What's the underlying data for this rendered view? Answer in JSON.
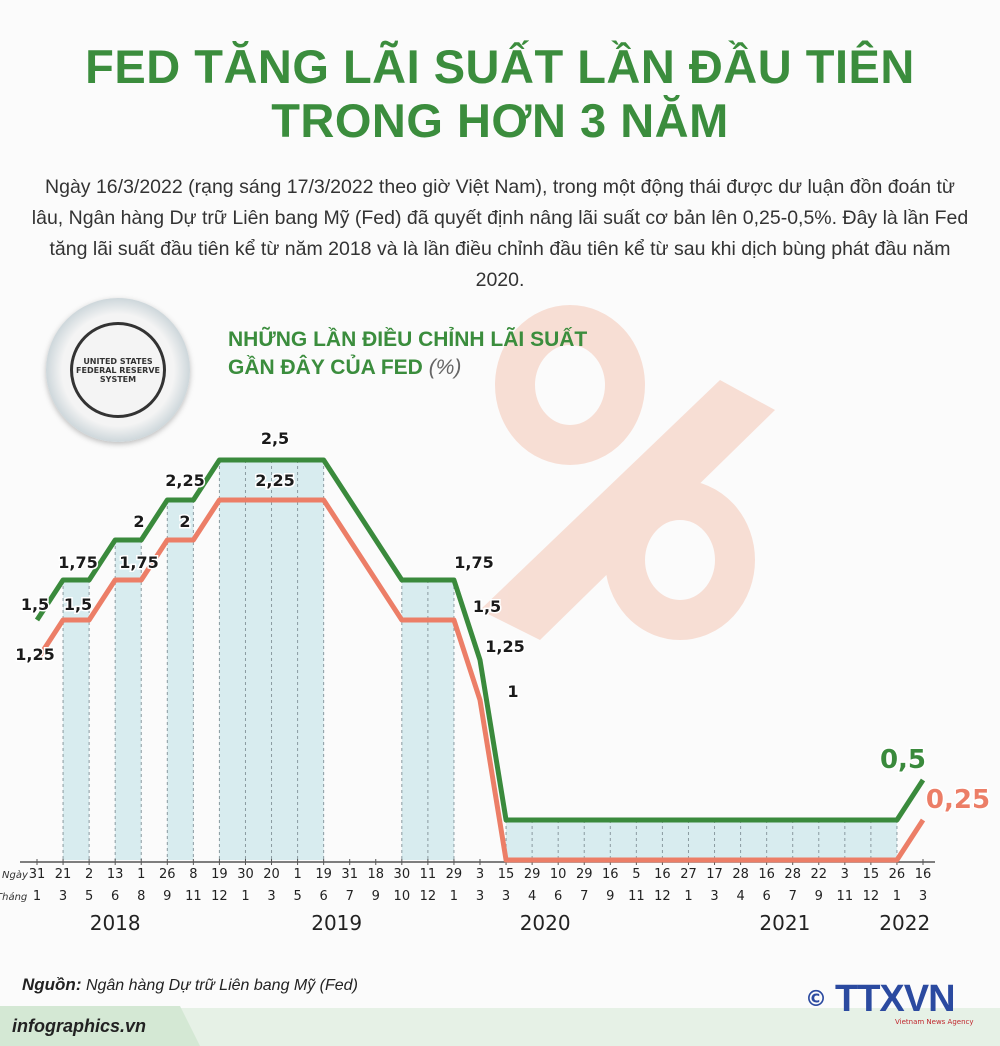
{
  "header": {
    "title_line1": "FED TĂNG LÃI SUẤT LẦN ĐẦU TIÊN",
    "title_line2": "TRONG HƠN 3 NĂM",
    "intro": "Ngày 16/3/2022 (rạng sáng 17/3/2022 theo giờ Việt Nam), trong một động thái được dư luận đồn đoán từ lâu, Ngân hàng Dự trữ Liên bang Mỹ (Fed) đã quyết định nâng lãi suất cơ bản lên 0,25-0,5%. Đây là lần Fed tăng lãi suất đầu tiên kể từ năm 2018 và là lần điều chỉnh đầu tiên kể từ sau khi dịch bùng phát đầu năm 2020."
  },
  "seal": {
    "text": "UNITED STATES FEDERAL RESERVE SYSTEM"
  },
  "chart_data": {
    "type": "line",
    "title_line1": "NHỮNG LẦN ĐIỀU CHỈNH LÃI SUẤT",
    "title_line2": "GẦN ĐÂY CỦA FED",
    "unit": "(%)",
    "row_label_day": "Ngày",
    "row_label_month": "Tháng",
    "days": [
      "31",
      "21",
      "2",
      "13",
      "1",
      "26",
      "8",
      "19",
      "30",
      "20",
      "1",
      "19",
      "31",
      "18",
      "30",
      "11",
      "29",
      "3",
      "15",
      "29",
      "10",
      "29",
      "16",
      "5",
      "16",
      "27",
      "17",
      "28",
      "16",
      "28",
      "22",
      "3",
      "15",
      "26",
      "16"
    ],
    "months": [
      "1",
      "3",
      "5",
      "6",
      "8",
      "9",
      "11",
      "12",
      "1",
      "3",
      "5",
      "6",
      "7",
      "9",
      "10",
      "12",
      "1",
      "3",
      "3",
      "4",
      "6",
      "7",
      "9",
      "11",
      "12",
      "1",
      "3",
      "4",
      "6",
      "7",
      "9",
      "11",
      "12",
      "1",
      "3"
    ],
    "years": [
      {
        "label": "2018",
        "tick": 3
      },
      {
        "label": "2019",
        "tick": 11.5
      },
      {
        "label": "2020",
        "tick": 19.5
      },
      {
        "label": "2021",
        "tick": 28.7
      },
      {
        "label": "2022",
        "tick": 33.3
      }
    ],
    "ylim": [
      0,
      2.5
    ],
    "series": [
      {
        "color": "#3a8a3c",
        "values": [
          1.5,
          1.75,
          1.75,
          2,
          2,
          2.25,
          2.25,
          2.5,
          2.5,
          2.5,
          2.5,
          2.5,
          2.25,
          2,
          1.75,
          1.75,
          1.75,
          1.25,
          0.25,
          0.25,
          0.25,
          0.25,
          0.25,
          0.25,
          0.25,
          0.25,
          0.25,
          0.25,
          0.25,
          0.25,
          0.25,
          0.25,
          0.25,
          0.25,
          0.5
        ]
      },
      {
        "color": "#ec7e67",
        "values": [
          1.25,
          1.5,
          1.5,
          1.75,
          1.75,
          2,
          2,
          2.25,
          2.25,
          2.25,
          2.25,
          2.25,
          2,
          1.75,
          1.5,
          1.5,
          1.5,
          1,
          0,
          0,
          0,
          0,
          0,
          0,
          0,
          0,
          0,
          0,
          0,
          0,
          0,
          0,
          0,
          0,
          0.25
        ]
      }
    ],
    "data_labels": [
      {
        "text": "1,5",
        "series": 0
      },
      {
        "text": "1,75",
        "series": 0
      },
      {
        "text": "2",
        "series": 0
      },
      {
        "text": "2,25",
        "series": 0
      },
      {
        "text": "2,5",
        "series": 0
      },
      {
        "text": "1,25",
        "series": 1
      },
      {
        "text": "1,5",
        "series": 1
      },
      {
        "text": "1,75",
        "series": 1
      },
      {
        "text": "2",
        "series": 1
      },
      {
        "text": "2,25",
        "series": 1
      },
      {
        "text": "1,75",
        "series": 0
      },
      {
        "text": "1,5",
        "series": 0
      },
      {
        "text": "1,25",
        "series": 0
      },
      {
        "text": "1",
        "series": 0
      },
      {
        "text": "0,5",
        "series": 0
      },
      {
        "text": "0,25",
        "series": 1
      }
    ],
    "shade_color": "#cfe9ec"
  },
  "footer": {
    "source_label": "Nguồn:",
    "source_text": "Ngân hàng Dự trữ Liên bang Mỹ (Fed)",
    "site": "infographics.vn",
    "logo_copyright": "©",
    "logo_text": "TTXVN",
    "logo_sub": "Vietnam News Agency"
  }
}
